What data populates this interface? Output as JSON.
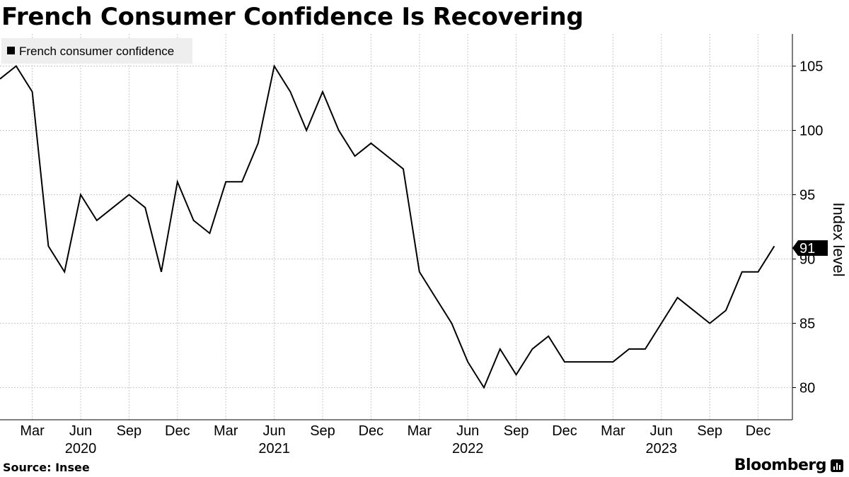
{
  "title": "French Consumer Confidence Is Recovering",
  "source": "Source: Insee",
  "brand": "Bloomberg",
  "brand_icon": "bar-chart-icon",
  "callout": "91",
  "colors": {
    "line": "#000000",
    "legend_bg": "#eeeeee",
    "callout_bg": "#000000",
    "grid": "#c8c8c8"
  },
  "chart_data": {
    "type": "line",
    "title": "French Consumer Confidence Is Recovering",
    "ylabel": "Index level",
    "xlabel": "",
    "ylim": [
      77.5,
      107.5
    ],
    "yticks": [
      80,
      85,
      90,
      95,
      100,
      105
    ],
    "grid": true,
    "y_axis_position": "right",
    "legend_position": "top-left",
    "x_tick_labels": [
      "Mar",
      "Jun",
      "Sep",
      "Dec",
      "Mar",
      "Jun",
      "Sep",
      "Dec",
      "Mar",
      "Jun",
      "Sep",
      "Dec",
      "Mar",
      "Jun",
      "Sep",
      "Dec"
    ],
    "year_labels": [
      "2020",
      "2021",
      "2022",
      "2023"
    ],
    "series": [
      {
        "name": "French consumer confidence",
        "x": [
          "2020-01",
          "2020-02",
          "2020-03",
          "2020-04",
          "2020-05",
          "2020-06",
          "2020-07",
          "2020-08",
          "2020-09",
          "2020-10",
          "2020-11",
          "2020-12",
          "2021-01",
          "2021-02",
          "2021-03",
          "2021-04",
          "2021-05",
          "2021-06",
          "2021-07",
          "2021-08",
          "2021-09",
          "2021-10",
          "2021-11",
          "2021-12",
          "2022-01",
          "2022-02",
          "2022-03",
          "2022-04",
          "2022-05",
          "2022-06",
          "2022-07",
          "2022-08",
          "2022-09",
          "2022-10",
          "2022-11",
          "2022-12",
          "2023-01",
          "2023-02",
          "2023-03",
          "2023-04",
          "2023-05",
          "2023-06",
          "2023-07",
          "2023-08",
          "2023-09",
          "2023-10",
          "2023-11",
          "2023-12",
          "2024-01"
        ],
        "values": [
          104,
          105,
          103,
          91,
          89,
          95,
          93,
          94,
          95,
          94,
          89,
          96,
          93,
          92,
          96,
          96,
          99,
          105,
          103,
          100,
          103,
          100,
          98,
          99,
          98,
          97,
          89,
          87,
          85,
          82,
          80,
          83,
          81,
          83,
          84,
          82,
          82,
          82,
          82,
          83,
          83,
          85,
          87,
          86,
          85,
          86,
          89,
          89,
          91
        ]
      }
    ]
  }
}
